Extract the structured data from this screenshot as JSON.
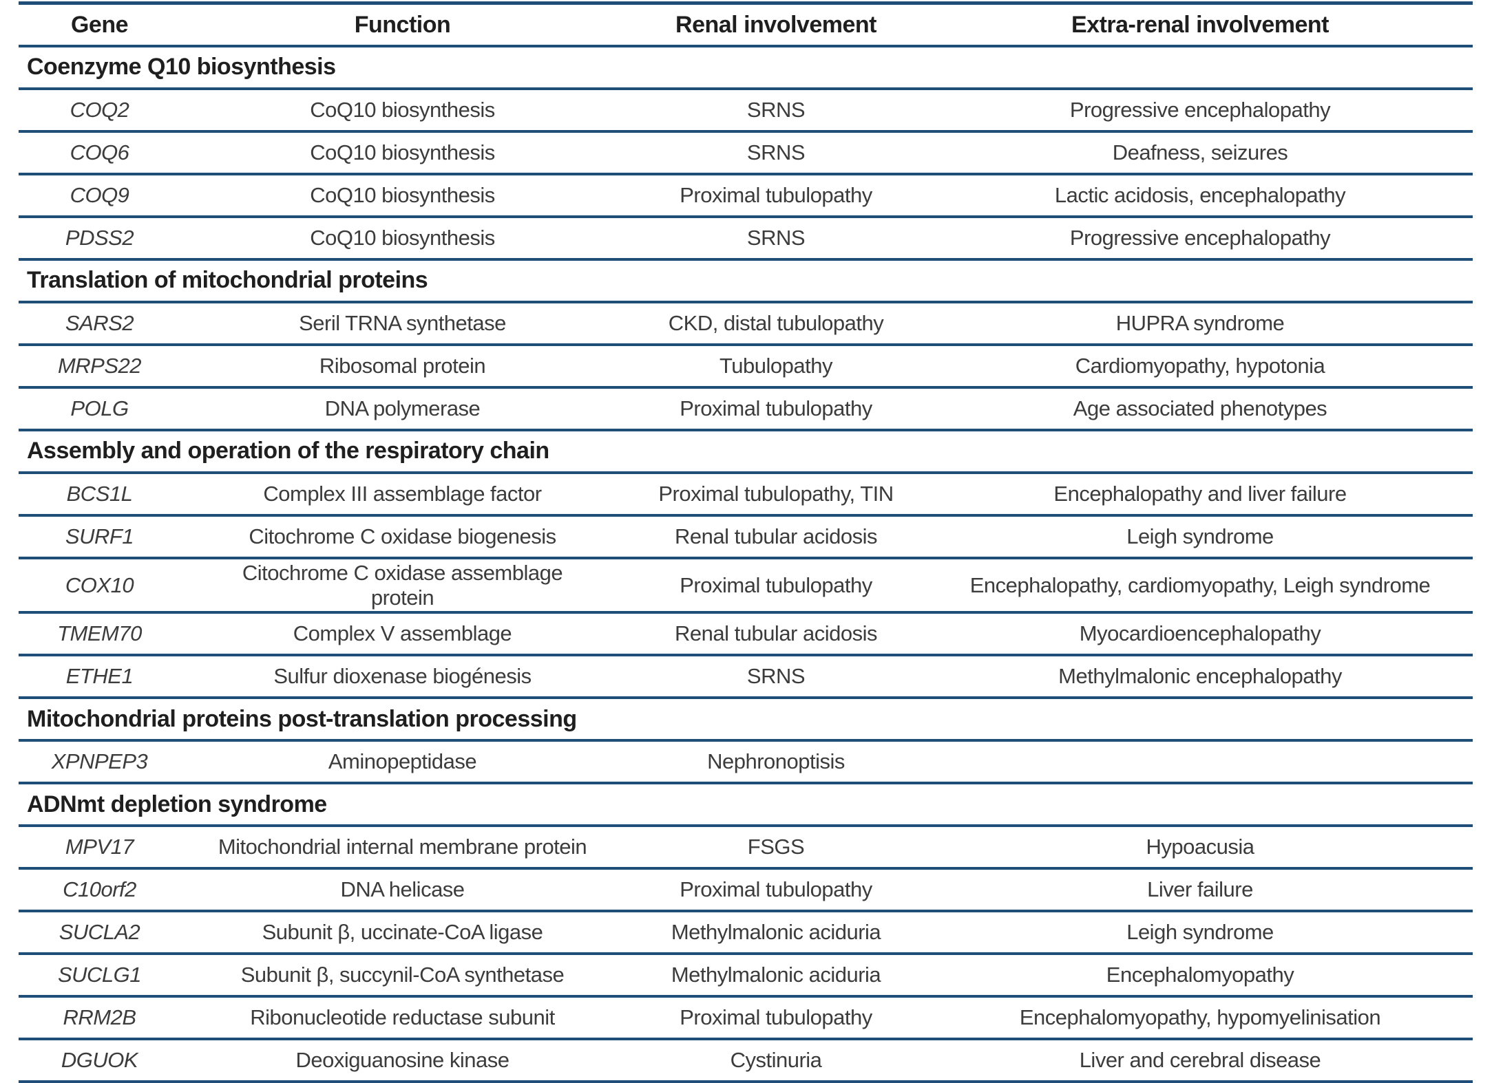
{
  "colors": {
    "rule": "#1f4e79",
    "header_text": "#1f1f1f",
    "body_text": "#3c3c3c"
  },
  "table": {
    "columns": [
      "Gene",
      "Function",
      "Renal involvement",
      "Extra-renal involvement"
    ],
    "sections": [
      {
        "title": "Coenzyme Q10 biosynthesis",
        "rows": [
          {
            "gene": "COQ2",
            "function": "CoQ10 biosynthesis",
            "renal": "SRNS",
            "extra": "Progressive encephalopathy"
          },
          {
            "gene": "COQ6",
            "function": "CoQ10 biosynthesis",
            "renal": "SRNS",
            "extra": "Deafness, seizures"
          },
          {
            "gene": "COQ9",
            "function": "CoQ10 biosynthesis",
            "renal": "Proximal tubulopathy",
            "extra": "Lactic acidosis, encephalopathy"
          },
          {
            "gene": "PDSS2",
            "function": "CoQ10 biosynthesis",
            "renal": "SRNS",
            "extra": "Progressive encephalopathy"
          }
        ]
      },
      {
        "title": "Translation of mitochondrial proteins",
        "rows": [
          {
            "gene": "SARS2",
            "function": "Seril TRNA synthetase",
            "renal": "CKD, distal tubulopathy",
            "extra": "HUPRA syndrome"
          },
          {
            "gene": "MRPS22",
            "function": "Ribosomal protein",
            "renal": "Tubulopathy",
            "extra": "Cardiomyopathy, hypotonia"
          },
          {
            "gene": "POLG",
            "function": "DNA polymerase",
            "renal": "Proximal tubulopathy",
            "extra": "Age associated phenotypes"
          }
        ]
      },
      {
        "title": "Assembly and operation of the respiratory chain",
        "rows": [
          {
            "gene": "BCS1L",
            "function": "Complex III assemblage factor",
            "renal": "Proximal tubulopathy, TIN",
            "extra": "Encephalopathy and liver failure"
          },
          {
            "gene": "SURF1",
            "function": "Citochrome C oxidase biogenesis",
            "renal": "Renal tubular acidosis",
            "extra": "Leigh syndrome"
          },
          {
            "gene": "COX10",
            "function": "Citochrome C oxidase assemblage\nprotein",
            "renal": "Proximal tubulopathy",
            "extra": "Encephalopathy, cardiomyopathy, Leigh syndrome"
          },
          {
            "gene": "TMEM70",
            "function": "Complex V assemblage",
            "renal": "Renal tubular acidosis",
            "extra": "Myocardioencephalopathy"
          },
          {
            "gene": "ETHE1",
            "function": "Sulfur dioxenase biogénesis",
            "renal": "SRNS",
            "extra": "Methylmalonic encephalopathy"
          }
        ]
      },
      {
        "title": "Mitochondrial proteins post-translation processing",
        "rows": [
          {
            "gene": "XPNPEP3",
            "function": "Aminopeptidase",
            "renal": "Nephronoptisis",
            "extra": ""
          }
        ]
      },
      {
        "title": "ADNmt depletion syndrome",
        "rows": [
          {
            "gene": "MPV17",
            "function": "Mitochondrial internal membrane protein",
            "renal": "FSGS",
            "extra": "Hypoacusia"
          },
          {
            "gene": "C10orf2",
            "function": "DNA helicase",
            "renal": "Proximal tubulopathy",
            "extra": "Liver failure"
          },
          {
            "gene": "SUCLA2",
            "function": "Subunit β, uccinate-CoA ligase",
            "renal": "Methylmalonic aciduria",
            "extra": "Leigh syndrome"
          },
          {
            "gene": "SUCLG1",
            "function": "Subunit β, succynil-CoA synthetase",
            "renal": "Methylmalonic aciduria",
            "extra": "Encephalomyopathy"
          },
          {
            "gene": "RRM2B",
            "function": "Ribonucleotide reductase subunit",
            "renal": "Proximal tubulopathy",
            "extra": "Encephalomyopathy, hypomyelinisation"
          },
          {
            "gene": "DGUOK",
            "function": "Deoxiguanosine kinase",
            "renal": "Cystinuria",
            "extra": "Liver and cerebral disease"
          }
        ]
      }
    ]
  }
}
